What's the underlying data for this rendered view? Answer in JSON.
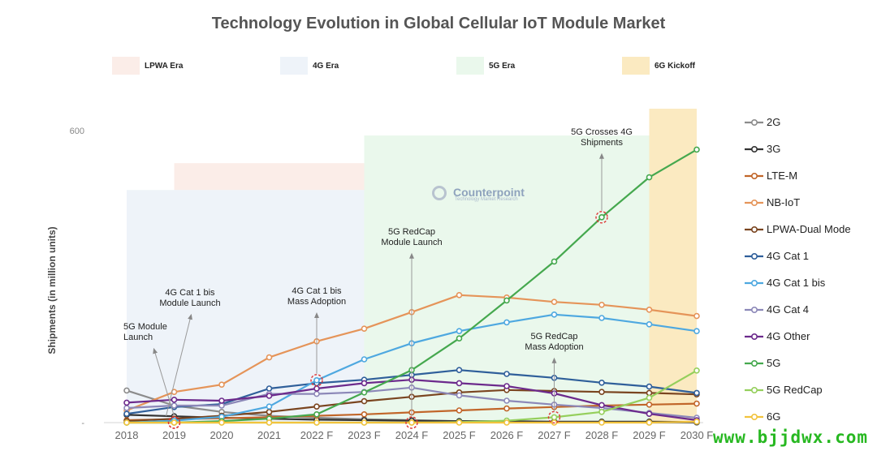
{
  "chart_data": {
    "type": "line",
    "title": "Technology Evolution in Global Cellular IoT Module Market",
    "ylabel": "Shipments (in million units)",
    "xlabel": "",
    "ylim": [
      0,
      600
    ],
    "ytick_labels": [
      "-",
      "600"
    ],
    "categories": [
      "2018",
      "2019",
      "2020",
      "2021",
      "2022 F",
      "2023 F",
      "2024 F",
      "2025 F",
      "2026 F",
      "2027 F",
      "2028 F",
      "2029 F",
      "2030 F"
    ],
    "eras": [
      {
        "label": "LPWA Era",
        "color": "#fbede8",
        "from": "2019",
        "to": "2026 F",
        "top_value": 533
      },
      {
        "label": "4G Era",
        "color": "#eef3f9",
        "from": "2018",
        "to": "2027 F",
        "top_value": 478
      },
      {
        "label": "5G Era",
        "color": "#eaf8ec",
        "from": "2023 F",
        "to": "2030 F",
        "top_value": 590
      },
      {
        "label": "6G Kickoff",
        "color": "#fbeac1",
        "from": "2029 F",
        "to": "2030 F",
        "top_value": 645
      }
    ],
    "series": [
      {
        "name": "2G",
        "color": "#8c8c8c",
        "values": [
          66,
          35,
          22,
          14,
          10,
          7,
          5,
          3,
          2,
          1,
          1,
          0,
          0
        ]
      },
      {
        "name": "3G",
        "color": "#333333",
        "values": [
          16,
          13,
          10,
          8,
          6,
          5,
          4,
          3,
          3,
          2,
          2,
          2,
          1
        ]
      },
      {
        "name": "LTE-M",
        "color": "#c1662a",
        "values": [
          5,
          7,
          9,
          11,
          14,
          17,
          21,
          25,
          29,
          32,
          35,
          37,
          39
        ]
      },
      {
        "name": "NB-IoT",
        "color": "#e59459",
        "values": [
          25,
          63,
          78,
          134,
          167,
          193,
          227,
          262,
          257,
          248,
          242,
          232,
          219
        ]
      },
      {
        "name": "LPWA-Dual Mode",
        "color": "#7a4520",
        "values": [
          3,
          8,
          14,
          22,
          33,
          44,
          53,
          62,
          67,
          65,
          63,
          61,
          58
        ]
      },
      {
        "name": "4G Cat 1",
        "color": "#2f5f9a",
        "values": [
          18,
          32,
          38,
          70,
          81,
          88,
          98,
          108,
          100,
          92,
          82,
          74,
          61
        ]
      },
      {
        "name": "4G Cat 1 bis",
        "color": "#4ea8e0",
        "values": [
          0,
          4,
          12,
          33,
          87,
          130,
          163,
          188,
          206,
          222,
          215,
          202,
          188
        ]
      },
      {
        "name": "4G Cat 4",
        "color": "#8c88b8",
        "values": [
          30,
          35,
          35,
          59,
          59,
          63,
          72,
          56,
          45,
          37,
          30,
          20,
          10
        ]
      },
      {
        "name": "4G Other",
        "color": "#6c2a8c",
        "values": [
          41,
          47,
          45,
          55,
          70,
          81,
          88,
          81,
          75,
          60,
          36,
          18,
          5
        ]
      },
      {
        "name": "5G",
        "color": "#45a84e",
        "values": [
          0,
          0,
          3,
          8,
          17,
          62,
          108,
          173,
          251,
          331,
          422,
          504,
          561
        ]
      },
      {
        "name": "5G RedCap",
        "color": "#95cf5c",
        "values": [
          0,
          0,
          0,
          0,
          0,
          0,
          0,
          1,
          4,
          11,
          22,
          51,
          107
        ]
      },
      {
        "name": "6G",
        "color": "#f2c33d",
        "values": [
          0,
          0,
          0,
          0,
          0,
          0,
          0,
          0,
          0,
          0,
          0,
          0,
          2
        ]
      }
    ],
    "annotations": [
      {
        "text": "5G Module Launch",
        "lines": [
          "5G Module",
          "Launch"
        ],
        "x": "2019",
        "value": 0,
        "text_value": 192,
        "text_anchor": "start"
      },
      {
        "text": "4G Cat 1 bis Module Launch",
        "lines": [
          "4G Cat 1 bis",
          "Module Launch"
        ],
        "x": "2019",
        "value": 0,
        "text_value": 262,
        "text_anchor": "middle"
      },
      {
        "text": "4G Cat 1 bis Mass Adoption",
        "lines": [
          "4G Cat 1 bis",
          "Mass Adoption"
        ],
        "x": "2022 F",
        "value": 87,
        "text_value": 265,
        "text_anchor": "middle"
      },
      {
        "text": "5G RedCap Module Launch",
        "lines": [
          "5G RedCap",
          "Module Launch"
        ],
        "x": "2024 F",
        "value": 0,
        "text_value": 387,
        "text_anchor": "middle"
      },
      {
        "text": "5G RedCap Mass Adoption",
        "lines": [
          "5G RedCap",
          "Mass Adoption"
        ],
        "x": "2027 F",
        "value": 11,
        "text_value": 172,
        "text_anchor": "middle"
      },
      {
        "text": "5G Crosses 4G Shipments",
        "lines": [
          "5G Crosses 4G",
          "Shipments"
        ],
        "x": "2028 F",
        "value": 422,
        "text_value": 592,
        "text_anchor": "middle"
      }
    ],
    "legend_position": "right",
    "grid": false
  },
  "watermark": "www.bjjdwx.com",
  "brand": {
    "name": "Counterpoint",
    "tagline": "Technology Market Research"
  }
}
